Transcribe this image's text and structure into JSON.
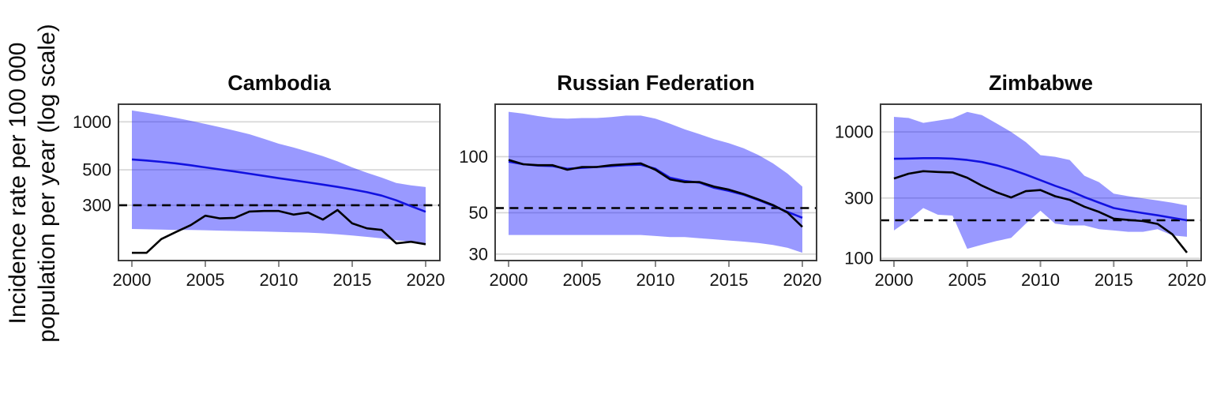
{
  "figure": {
    "y_axis_label_line1": "Incidence rate per 100 000",
    "y_axis_label_line2": "population per year (log scale)"
  },
  "colors": {
    "uncertainty_band": "rgba(0,0,255,0.40)",
    "estimate_line": "#1212e0",
    "notifications_line": "#000000",
    "dashed_reference_line": "#000000",
    "gridline": "#d5d5d5",
    "panel_border": "#3d3d3d",
    "tick_mark": "#8a8a8a",
    "axis_text": "#141414"
  },
  "chart_data": {
    "type": "line",
    "x_label": "",
    "y_label": "Incidence rate per 100 000 population per year (log scale)",
    "x": [
      2000,
      2001,
      2002,
      2003,
      2004,
      2005,
      2006,
      2007,
      2008,
      2009,
      2010,
      2011,
      2012,
      2013,
      2014,
      2015,
      2016,
      2017,
      2018,
      2019,
      2020
    ],
    "xticks": [
      2000,
      2005,
      2010,
      2015,
      2020
    ],
    "grid": "horizontal-only",
    "legend": "none",
    "panels": [
      {
        "title": "Cambodia",
        "ylim": [
          135,
          1289
        ],
        "yticks": [
          1000,
          500,
          300
        ],
        "dashed_reference": 300,
        "series": [
          {
            "name": "estimate",
            "values": [
              581,
              572,
              561,
              549,
              534,
              518,
              503,
              488,
              473,
              458,
              443,
              430,
              417,
              404,
              391,
              377,
              362,
              345,
              322,
              296,
              273
            ]
          },
          {
            "name": "uncertainty_upper",
            "values": [
              1178,
              1140,
              1100,
              1058,
              1015,
              970,
              925,
              880,
              836,
              782,
              729,
              690,
              650,
              610,
              565,
              518,
              480,
              447,
              414,
              400,
              390
            ]
          },
          {
            "name": "uncertainty_lower",
            "values": [
              213,
              212,
              211,
              210,
              210,
              209,
              208,
              207,
              206,
              205,
              204,
              203,
              202,
              200,
              197,
              194,
              190,
              186,
              181,
              177,
              173
            ]
          },
          {
            "name": "notifications",
            "values": [
              151,
              151,
              184,
              204,
              225,
              258,
              248,
              250,
              274,
              276,
              276,
              262,
              270,
              244,
              280,
              231,
              215,
              210,
              173,
              177,
              171
            ]
          }
        ]
      },
      {
        "title": "Russian Federation",
        "ylim": [
          27.7,
          191
        ],
        "yticks": [
          100,
          50,
          30
        ],
        "dashed_reference": 53,
        "series": [
          {
            "name": "estimate",
            "values": [
              94,
              91,
              89.5,
              89,
              86,
              87,
              88,
              89,
              90,
              90.5,
              86,
              77,
              74,
              72.5,
              68,
              65.5,
              62.5,
              58.5,
              54.5,
              50.5,
              47
            ]
          },
          {
            "name": "uncertainty_upper",
            "values": [
              174,
              170,
              165,
              161,
              160,
              161,
              161,
              163,
              166,
              166,
              160,
              150,
              140,
              132,
              124,
              118,
              111,
              102,
              92,
              81,
              69
            ]
          },
          {
            "name": "uncertainty_lower",
            "values": [
              38,
              38,
              38,
              38,
              38,
              38,
              38,
              38,
              38,
              38,
              37.5,
              37,
              37,
              36.5,
              36,
              35.5,
              35,
              34.4,
              33.6,
              32.4,
              30.5
            ]
          },
          {
            "name": "notifications",
            "values": [
              96,
              91,
              90,
              90,
              85,
              88,
              88,
              90,
              91,
              92,
              85,
              75.5,
              73,
              73,
              69,
              66.5,
              63,
              59,
              55,
              50,
              42
            ]
          }
        ]
      },
      {
        "title": "Zimbabwe",
        "ylim": [
          96,
          1656
        ],
        "yticks": [
          1000,
          300,
          100
        ],
        "dashed_reference": 200,
        "series": [
          {
            "name": "estimate",
            "values": [
              613,
              616,
              620,
              620,
              615,
              600,
              578,
              545,
              505,
              460,
              415,
              375,
              342,
              305,
              276,
              250,
              238,
              228,
              219,
              209,
              200
            ]
          },
          {
            "name": "uncertainty_upper",
            "values": [
              1315,
              1290,
              1180,
              1230,
              1280,
              1440,
              1360,
              1170,
              1000,
              830,
              655,
              635,
              600,
              450,
              400,
              325,
              310,
              298,
              287,
              275,
              262
            ]
          },
          {
            "name": "uncertainty_lower",
            "values": [
              166,
              200,
              250,
              221,
              218,
              119,
              128,
              137,
              145,
              188,
              238,
              188,
              182,
              182,
              170,
              166,
              162,
              162,
              170,
              152,
              148
            ]
          },
          {
            "name": "notifications",
            "values": [
              428,
              467,
              489,
              482,
              478,
              434,
              376,
              333,
              303,
              340,
              347,
              310,
              290,
              256,
              233,
              206,
              201,
              197,
              187,
              155,
              111
            ]
          }
        ]
      }
    ]
  }
}
